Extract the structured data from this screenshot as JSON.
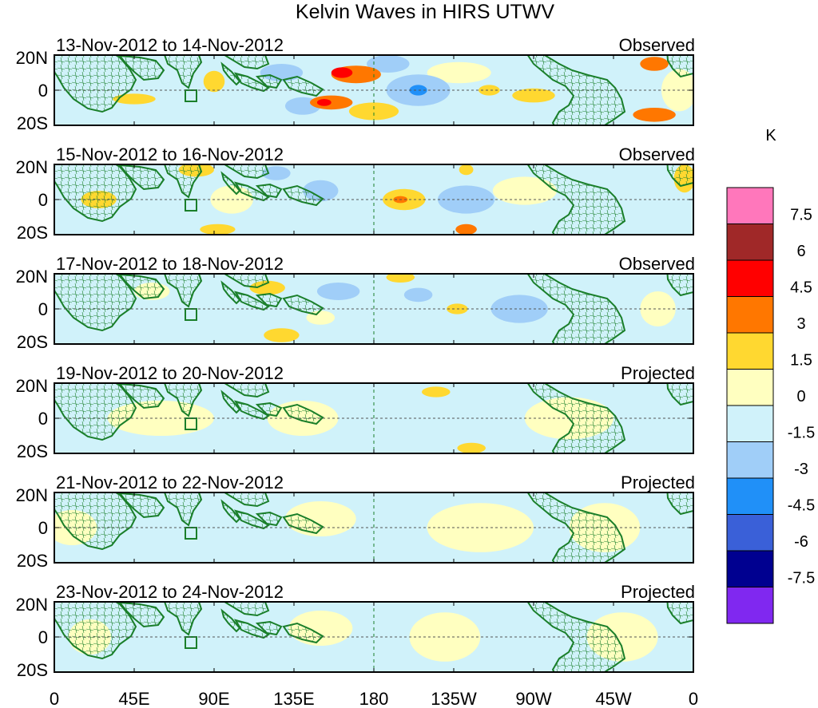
{
  "chart_data": {
    "type": "heatmap",
    "title": "Kelvin Waves in HIRS UTWV",
    "units_label": "K",
    "x_ticks": [
      "0",
      "45E",
      "90E",
      "135E",
      "180",
      "135W",
      "90W",
      "45W",
      "0"
    ],
    "y_ticks": [
      "20N",
      "0",
      "20S"
    ],
    "x_range_deg": [
      0,
      360
    ],
    "y_range_deg": [
      -20,
      20
    ],
    "colorbar": {
      "levels": [
        "7.5",
        "6",
        "4.5",
        "3",
        "1.5",
        "0",
        "-1.5",
        "-3",
        "-4.5",
        "-6",
        "-7.5"
      ],
      "colors": [
        "#ff77bb",
        "#a02828",
        "#ff0000",
        "#ff7700",
        "#ffd830",
        "#ffffc0",
        "#d0f2fa",
        "#a0cef8",
        "#2090f8",
        "#3a60d8",
        "#000090",
        "#8028f0"
      ]
    },
    "panels": [
      {
        "period": "13-Nov-2012 to 14-Nov-2012",
        "status": "Observed"
      },
      {
        "period": "15-Nov-2012 to 16-Nov-2012",
        "status": "Observed"
      },
      {
        "period": "17-Nov-2012 to 18-Nov-2012",
        "status": "Observed"
      },
      {
        "period": "19-Nov-2012 to 20-Nov-2012",
        "status": "Projected"
      },
      {
        "period": "21-Nov-2012 to 22-Nov-2012",
        "status": "Projected"
      },
      {
        "period": "23-Nov-2012 to 24-Nov-2012",
        "status": "Projected"
      }
    ],
    "anomalies": [
      [
        {
          "lon": 170,
          "lat": 9,
          "lon_r": 14,
          "lat_r": 5,
          "value": 4.0
        },
        {
          "lon": 162,
          "lat": 10,
          "lon_r": 6,
          "lat_r": 3,
          "value": 5.0
        },
        {
          "lon": 156,
          "lat": -7,
          "lon_r": 12,
          "lat_r": 4,
          "value": 3.5
        },
        {
          "lon": 152,
          "lat": -7,
          "lon_r": 4,
          "lat_r": 2,
          "value": 5.0
        },
        {
          "lon": 205,
          "lat": 0,
          "lon_r": 18,
          "lat_r": 9,
          "value": -2.2
        },
        {
          "lon": 205,
          "lat": 0,
          "lon_r": 5,
          "lat_r": 3,
          "value": -3.5
        },
        {
          "lon": 128,
          "lat": 10,
          "lon_r": 12,
          "lat_r": 5,
          "value": -2.2
        },
        {
          "lon": 140,
          "lat": -9,
          "lon_r": 10,
          "lat_r": 5,
          "value": -2.2
        },
        {
          "lon": 188,
          "lat": 15,
          "lon_r": 12,
          "lat_r": 5,
          "value": -1.7
        },
        {
          "lon": 180,
          "lat": -12,
          "lon_r": 14,
          "lat_r": 5,
          "value": 2.0
        },
        {
          "lon": 338,
          "lat": 15,
          "lon_r": 8,
          "lat_r": 4,
          "value": 3.6
        },
        {
          "lon": 338,
          "lat": -14,
          "lon_r": 12,
          "lat_r": 4,
          "value": 3.5
        },
        {
          "lon": 270,
          "lat": -3,
          "lon_r": 12,
          "lat_r": 4,
          "value": 1.8
        },
        {
          "lon": 245,
          "lat": 0,
          "lon_r": 6,
          "lat_r": 3,
          "value": 1.7
        },
        {
          "lon": 90,
          "lat": 5,
          "lon_r": 6,
          "lat_r": 6,
          "value": 1.6
        },
        {
          "lon": 45,
          "lat": -5,
          "lon_r": 12,
          "lat_r": 3,
          "value": 1.6
        },
        {
          "lon": 228,
          "lat": 10,
          "lon_r": 18,
          "lat_r": 6,
          "value": 0.8
        },
        {
          "lon": 352,
          "lat": 0,
          "lon_r": 10,
          "lat_r": 12,
          "value": 1.0
        }
      ],
      [
        {
          "lon": 197,
          "lat": 0,
          "lon_r": 12,
          "lat_r": 6,
          "value": 2.0
        },
        {
          "lon": 195,
          "lat": 0,
          "lon_r": 4,
          "lat_r": 2,
          "value": 3.5
        },
        {
          "lon": 232,
          "lat": 0,
          "lon_r": 16,
          "lat_r": 8,
          "value": -2.0
        },
        {
          "lon": 232,
          "lat": 17,
          "lon_r": 4,
          "lat_r": 3,
          "value": 2.5
        },
        {
          "lon": 232,
          "lat": -17,
          "lon_r": 6,
          "lat_r": 3,
          "value": 3.5
        },
        {
          "lon": 80,
          "lat": 17,
          "lon_r": 10,
          "lat_r": 4,
          "value": 2.0
        },
        {
          "lon": 92,
          "lat": -17,
          "lon_r": 10,
          "lat_r": 3,
          "value": 1.8
        },
        {
          "lon": 25,
          "lat": 0,
          "lon_r": 10,
          "lat_r": 5,
          "value": 1.6
        },
        {
          "lon": 355,
          "lat": 12,
          "lon_r": 6,
          "lat_r": 8,
          "value": 1.8
        },
        {
          "lon": 150,
          "lat": 5,
          "lon_r": 10,
          "lat_r": 6,
          "value": -1.7
        },
        {
          "lon": 125,
          "lat": 15,
          "lon_r": 8,
          "lat_r": 4,
          "value": -1.7
        },
        {
          "lon": 100,
          "lat": 0,
          "lon_r": 12,
          "lat_r": 8,
          "value": 0.8
        },
        {
          "lon": 265,
          "lat": 5,
          "lon_r": 18,
          "lat_r": 8,
          "value": 0.7
        }
      ],
      [
        {
          "lon": 262,
          "lat": 0,
          "lon_r": 16,
          "lat_r": 8,
          "value": -1.8
        },
        {
          "lon": 120,
          "lat": 12,
          "lon_r": 10,
          "lat_r": 4,
          "value": 1.8
        },
        {
          "lon": 128,
          "lat": -15,
          "lon_r": 10,
          "lat_r": 4,
          "value": 1.8
        },
        {
          "lon": 195,
          "lat": 18,
          "lon_r": 8,
          "lat_r": 3,
          "value": 1.8
        },
        {
          "lon": 227,
          "lat": 0,
          "lon_r": 6,
          "lat_r": 3,
          "value": 1.6
        },
        {
          "lon": 205,
          "lat": 8,
          "lon_r": 8,
          "lat_r": 4,
          "value": -1.7
        },
        {
          "lon": 160,
          "lat": 10,
          "lon_r": 12,
          "lat_r": 5,
          "value": -1.7
        },
        {
          "lon": 150,
          "lat": -5,
          "lon_r": 8,
          "lat_r": 4,
          "value": 0.8
        },
        {
          "lon": 55,
          "lat": 10,
          "lon_r": 10,
          "lat_r": 5,
          "value": 0.8
        },
        {
          "lon": 340,
          "lat": 0,
          "lon_r": 10,
          "lat_r": 10,
          "value": 1.0
        }
      ],
      [
        {
          "lon": 215,
          "lat": 15,
          "lon_r": 8,
          "lat_r": 3,
          "value": 1.7
        },
        {
          "lon": 235,
          "lat": -17,
          "lon_r": 8,
          "lat_r": 3,
          "value": 1.7
        },
        {
          "lon": 60,
          "lat": 0,
          "lon_r": 30,
          "lat_r": 10,
          "value": 0.8
        },
        {
          "lon": 140,
          "lat": 0,
          "lon_r": 20,
          "lat_r": 10,
          "value": 0.8
        },
        {
          "lon": 290,
          "lat": 0,
          "lon_r": 25,
          "lat_r": 12,
          "value": 0.6
        },
        {
          "lon": 240,
          "lat": 0,
          "lon_r": 12,
          "lat_r": 8,
          "value": -0.8
        },
        {
          "lon": 200,
          "lat": 0,
          "lon_r": 10,
          "lat_r": 10,
          "value": -0.6
        }
      ],
      [
        {
          "lon": 240,
          "lat": 0,
          "lon_r": 30,
          "lat_r": 14,
          "value": 0.8
        },
        {
          "lon": 310,
          "lat": 0,
          "lon_r": 20,
          "lat_r": 14,
          "value": 0.8
        },
        {
          "lon": 150,
          "lat": 5,
          "lon_r": 20,
          "lat_r": 10,
          "value": 0.8
        },
        {
          "lon": 10,
          "lat": 0,
          "lon_r": 14,
          "lat_r": 10,
          "value": 0.6
        },
        {
          "lon": 70,
          "lat": 0,
          "lon_r": 14,
          "lat_r": 10,
          "value": -0.6
        }
      ],
      [
        {
          "lon": 220,
          "lat": 0,
          "lon_r": 20,
          "lat_r": 14,
          "value": 0.8
        },
        {
          "lon": 320,
          "lat": 0,
          "lon_r": 20,
          "lat_r": 14,
          "value": 0.8
        },
        {
          "lon": 150,
          "lat": 5,
          "lon_r": 18,
          "lat_r": 10,
          "value": 0.8
        },
        {
          "lon": 20,
          "lat": 0,
          "lon_r": 12,
          "lat_r": 10,
          "value": 0.6
        },
        {
          "lon": 100,
          "lat": 0,
          "lon_r": 16,
          "lat_r": 10,
          "value": -0.5
        }
      ]
    ]
  }
}
